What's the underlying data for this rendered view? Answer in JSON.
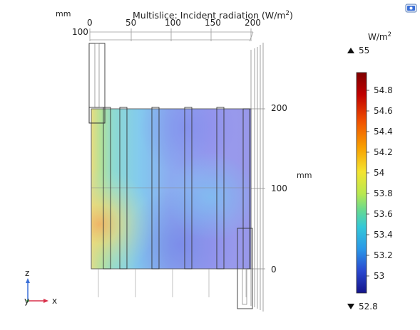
{
  "plot": {
    "title_prefix": "Multislice: Incident radiation (W/m",
    "title_sup": "2",
    "title_suffix": ")",
    "top_axis": {
      "unit": "mm",
      "ticks": [
        "0",
        "50",
        "100",
        "150",
        "200"
      ],
      "depth_tick": "100"
    },
    "right_axis": {
      "unit": "mm",
      "ticks": [
        "200",
        "100",
        "0"
      ]
    },
    "triad": {
      "z": "z",
      "y": "y",
      "x": "x"
    }
  },
  "colorbar": {
    "unit_prefix": "W/m",
    "unit_sup": "2",
    "max_label": "55",
    "min_label": "52.8",
    "ticks": [
      "54.8",
      "54.6",
      "54.4",
      "54.2",
      "54",
      "53.8",
      "53.6",
      "53.4",
      "53.2",
      "53"
    ],
    "colors": [
      "#7f0000",
      "#d01a00",
      "#f46d00",
      "#fdd000",
      "#c8e640",
      "#7be08c",
      "#3bd0d8",
      "#2a9ee8",
      "#2a5ad8",
      "#1a1a8c"
    ]
  },
  "toolbar": {
    "icon": "graphics-window-icon"
  }
}
